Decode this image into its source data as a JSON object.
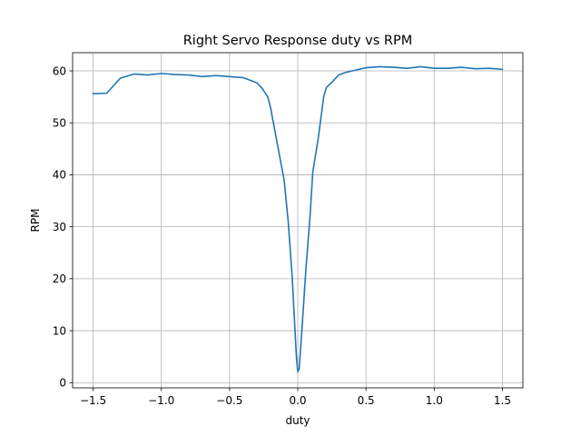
{
  "chart_data": {
    "type": "line",
    "title": "Right Servo Response duty vs RPM",
    "xlabel": "duty",
    "ylabel": "RPM",
    "xlim": [
      -1.65,
      1.65
    ],
    "ylim": [
      -1,
      63.5
    ],
    "xticks": [
      -1.5,
      -1.0,
      -0.5,
      0.0,
      0.5,
      1.0,
      1.5
    ],
    "xtick_labels": [
      "−1.5",
      "−1.0",
      "−0.5",
      "0.0",
      "0.5",
      "1.0",
      "1.5"
    ],
    "yticks": [
      0,
      10,
      20,
      30,
      40,
      50,
      60
    ],
    "ytick_labels": [
      "0",
      "10",
      "20",
      "30",
      "40",
      "50",
      "60"
    ],
    "grid": true,
    "series": [
      {
        "name": "Right Servo",
        "color": "#1f77b4",
        "x": [
          -1.5,
          -1.4,
          -1.3,
          -1.2,
          -1.1,
          -1.0,
          -0.9,
          -0.8,
          -0.7,
          -0.6,
          -0.5,
          -0.4,
          -0.3,
          -0.26,
          -0.22,
          -0.2,
          -0.15,
          -0.1,
          -0.07,
          -0.04,
          -0.02,
          -0.01,
          0.0,
          0.01,
          0.03,
          0.06,
          0.09,
          0.11,
          0.15,
          0.19,
          0.21,
          0.25,
          0.3,
          0.35,
          0.4,
          0.5,
          0.6,
          0.7,
          0.8,
          0.9,
          1.0,
          1.1,
          1.2,
          1.3,
          1.4,
          1.5
        ],
        "y": [
          55.6,
          55.7,
          58.6,
          59.4,
          59.2,
          59.5,
          59.3,
          59.2,
          58.9,
          59.1,
          58.9,
          58.7,
          57.7,
          56.6,
          55.0,
          53.0,
          46.0,
          39.0,
          31.0,
          20.0,
          10.0,
          5.0,
          2.1,
          2.6,
          10.0,
          22.0,
          32.0,
          40.5,
          47.0,
          55.0,
          56.8,
          57.8,
          59.2,
          59.7,
          60.0,
          60.6,
          60.8,
          60.7,
          60.5,
          60.8,
          60.5,
          60.5,
          60.7,
          60.4,
          60.5,
          60.3
        ]
      }
    ]
  }
}
